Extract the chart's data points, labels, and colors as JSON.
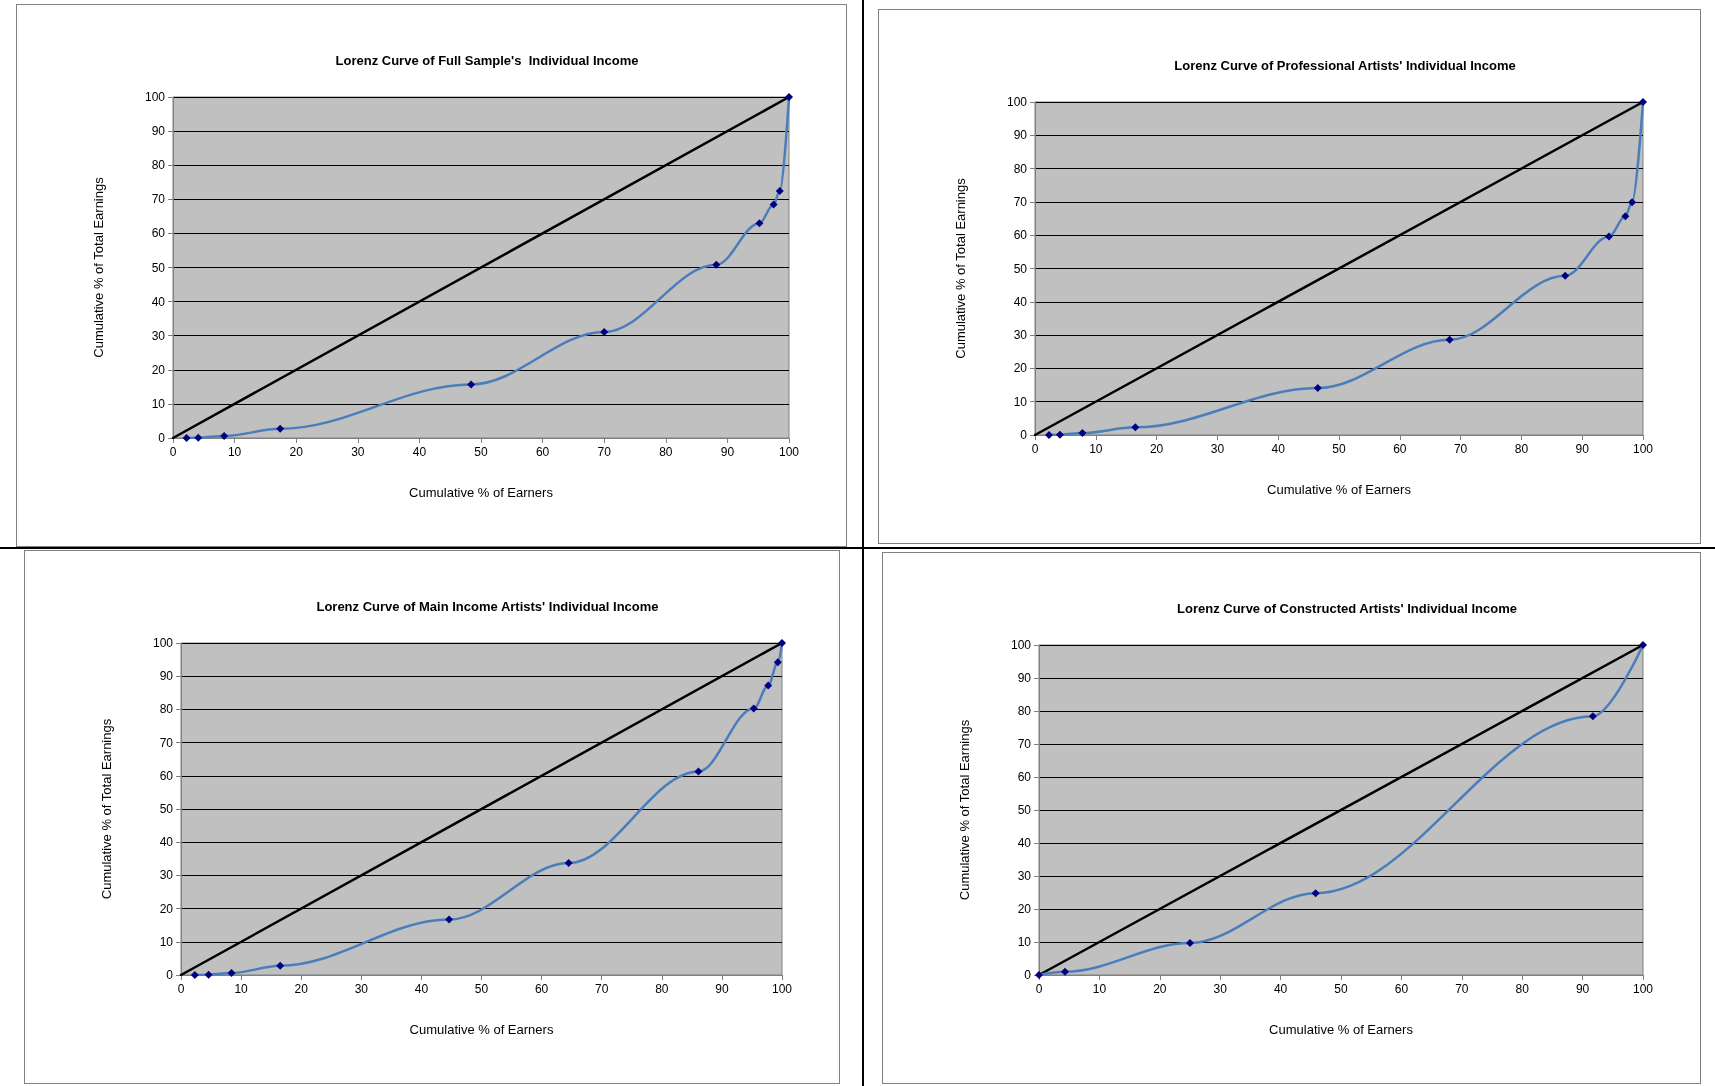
{
  "chart_data": [
    {
      "type": "line",
      "title": "Lorenz Curve of Full Sample's  Individual Income",
      "xlabel": "Cumulative % of Earners",
      "ylabel": "Cumulative % of Total Earnings",
      "xlim": [
        0,
        100
      ],
      "xticks": [
        0,
        10,
        20,
        30,
        40,
        50,
        60,
        70,
        80,
        90,
        100
      ],
      "ylim": [
        0,
        100
      ],
      "yticks": [
        0,
        10,
        20,
        30,
        40,
        50,
        60,
        70,
        80,
        90,
        100
      ],
      "grid": "y",
      "marker": "diamond",
      "series": [
        {
          "color": "#4a7ebb",
          "x": [
            2.2,
            4.1,
            8.3,
            17.4,
            48.4,
            70,
            88.2,
            95.2,
            97.5,
            98.5,
            100
          ],
          "values": [
            0,
            0.1,
            0.6,
            2.7,
            15.7,
            31.1,
            50.8,
            63,
            68.5,
            72.4,
            100
          ]
        },
        {
          "color": "#000000",
          "marker": "none",
          "x": [
            0,
            100
          ],
          "values": [
            0,
            100
          ]
        }
      ]
    },
    {
      "type": "line",
      "title": "Lorenz Curve of Professional Artists' Individual Income",
      "xlabel": "Cumulative % of Earners",
      "ylabel": "Cumulative % of Total Earnings",
      "xlim": [
        0,
        100
      ],
      "xticks": [
        0,
        10,
        20,
        30,
        40,
        50,
        60,
        70,
        80,
        90,
        100
      ],
      "ylim": [
        0,
        100
      ],
      "yticks": [
        0,
        10,
        20,
        30,
        40,
        50,
        60,
        70,
        80,
        90,
        100
      ],
      "grid": "y",
      "marker": "diamond",
      "series": [
        {
          "color": "#4a7ebb",
          "x": [
            2.3,
            4.1,
            7.8,
            16.5,
            46.5,
            68.2,
            87.2,
            94.4,
            97.1,
            98.2,
            100
          ],
          "values": [
            0,
            0.1,
            0.6,
            2.3,
            14.1,
            28.6,
            47.8,
            59.6,
            65.7,
            69.9,
            100
          ]
        },
        {
          "color": "#000000",
          "marker": "none",
          "x": [
            0,
            100
          ],
          "values": [
            0,
            100
          ]
        }
      ]
    },
    {
      "type": "line",
      "title": "Lorenz Curve of Main Income Artists' Individual Income",
      "xlabel": "Cumulative % of Earners",
      "ylabel": "Cumulative % of Total Earnings",
      "xlim": [
        0,
        100
      ],
      "xticks": [
        0,
        10,
        20,
        30,
        40,
        50,
        60,
        70,
        80,
        90,
        100
      ],
      "ylim": [
        0,
        100
      ],
      "yticks": [
        0,
        10,
        20,
        30,
        40,
        50,
        60,
        70,
        80,
        90,
        100
      ],
      "grid": "y",
      "marker": "diamond",
      "series": [
        {
          "color": "#4a7ebb",
          "x": [
            2.3,
            4.6,
            8.4,
            16.5,
            44.6,
            64.5,
            86.1,
            95.3,
            97.7,
            99.3,
            100
          ],
          "values": [
            0,
            0.1,
            0.6,
            2.8,
            16.7,
            33.7,
            61.3,
            80.3,
            87.2,
            94.2,
            100
          ]
        },
        {
          "color": "#000000",
          "marker": "none",
          "x": [
            0,
            100
          ],
          "values": [
            0,
            100
          ]
        }
      ]
    },
    {
      "type": "line",
      "title": "Lorenz Curve of Constructed Artists' Individual Income",
      "xlabel": "Cumulative % of Earners",
      "ylabel": "Cumulative % of Total Earnings",
      "xlim": [
        0,
        100
      ],
      "xticks": [
        0,
        10,
        20,
        30,
        40,
        50,
        60,
        70,
        80,
        90,
        100
      ],
      "ylim": [
        0,
        100
      ],
      "yticks": [
        0,
        10,
        20,
        30,
        40,
        50,
        60,
        70,
        80,
        90,
        100
      ],
      "grid": "y",
      "marker": "diamond",
      "series": [
        {
          "color": "#4a7ebb",
          "x": [
            0,
            4.3,
            25,
            45.8,
            91.7,
            100
          ],
          "values": [
            0,
            1.0,
            9.7,
            24.8,
            78.4,
            100
          ]
        },
        {
          "color": "#000000",
          "marker": "none",
          "x": [
            0,
            100
          ],
          "values": [
            0,
            100
          ]
        }
      ]
    }
  ]
}
